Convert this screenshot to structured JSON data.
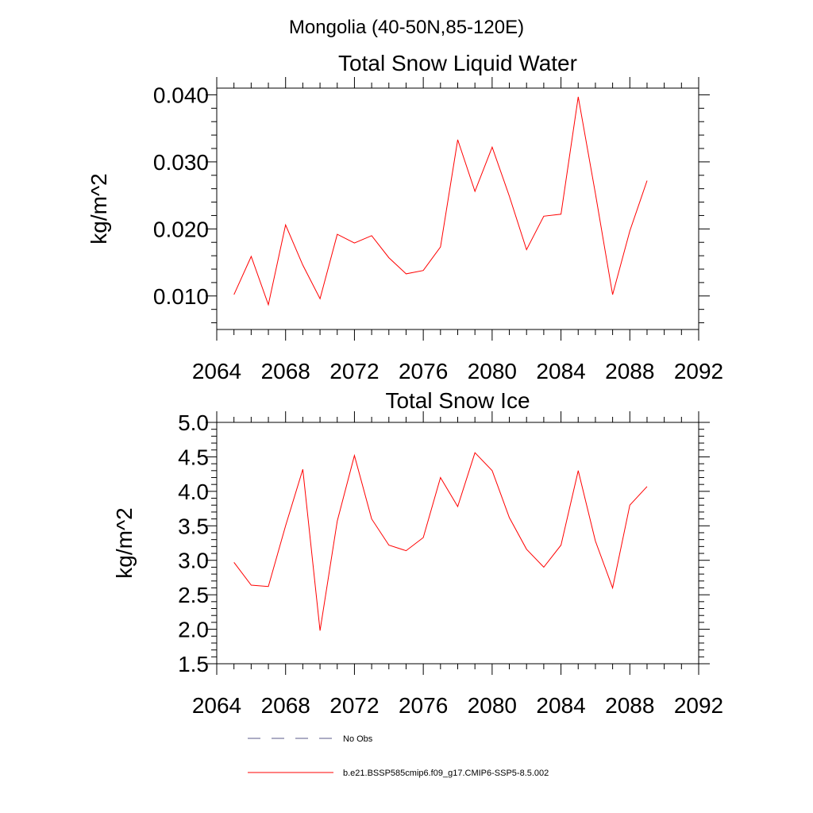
{
  "figure": {
    "suptitle": "Mongolia (40-50N,85-120E)"
  },
  "chart_data": [
    {
      "type": "line",
      "title": "Total Snow Liquid Water",
      "xlabel": "",
      "ylabel": "kg/m^2",
      "xlim": [
        2064,
        2092
      ],
      "ylim": [
        0.005,
        0.041
      ],
      "x_ticks": [
        2064,
        2068,
        2072,
        2076,
        2080,
        2084,
        2088,
        2092
      ],
      "x_tick_labels": [
        "2064",
        "2068",
        "2072",
        "2076",
        "2080",
        "2084",
        "2088",
        "2092"
      ],
      "y_ticks": [
        0.01,
        0.02,
        0.03,
        0.04
      ],
      "y_tick_labels": [
        "0.010",
        "0.020",
        "0.030",
        "0.040"
      ],
      "grid": false,
      "series": [
        {
          "name": "b.e21.BSSP585cmip6.f09_g17.CMIP6-SSP5-8.5.002",
          "color": "#ff0000",
          "x": [
            2065,
            2066,
            2067,
            2068,
            2069,
            2070,
            2071,
            2072,
            2073,
            2074,
            2075,
            2076,
            2077,
            2078,
            2079,
            2080,
            2081,
            2082,
            2083,
            2084,
            2085,
            2086,
            2087,
            2088,
            2089
          ],
          "y": [
            0.0102,
            0.0159,
            0.0087,
            0.0206,
            0.0146,
            0.0096,
            0.0192,
            0.0179,
            0.019,
            0.0157,
            0.0133,
            0.0138,
            0.0173,
            0.0333,
            0.0256,
            0.0322,
            0.0249,
            0.0169,
            0.0219,
            0.0222,
            0.0397,
            0.0253,
            0.0102,
            0.0197,
            0.0272
          ]
        }
      ]
    },
    {
      "type": "line",
      "title": "Total Snow Ice",
      "xlabel": "",
      "ylabel": "kg/m^2",
      "xlim": [
        2064,
        2092
      ],
      "ylim": [
        1.5,
        5.0
      ],
      "x_ticks": [
        2064,
        2068,
        2072,
        2076,
        2080,
        2084,
        2088,
        2092
      ],
      "x_tick_labels": [
        "2064",
        "2068",
        "2072",
        "2076",
        "2080",
        "2084",
        "2088",
        "2092"
      ],
      "y_ticks": [
        1.5,
        2.0,
        2.5,
        3.0,
        3.5,
        4.0,
        4.5,
        5.0
      ],
      "y_tick_labels": [
        "1.5",
        "2.0",
        "2.5",
        "3.0",
        "3.5",
        "4.0",
        "4.5",
        "5.0"
      ],
      "grid": false,
      "series": [
        {
          "name": "b.e21.BSSP585cmip6.f09_g17.CMIP6-SSP5-8.5.002",
          "color": "#ff0000",
          "x": [
            2065,
            2066,
            2067,
            2068,
            2069,
            2070,
            2071,
            2072,
            2073,
            2074,
            2075,
            2076,
            2077,
            2078,
            2079,
            2080,
            2081,
            2082,
            2083,
            2084,
            2085,
            2086,
            2087,
            2088,
            2089
          ],
          "y": [
            2.97,
            2.64,
            2.62,
            3.5,
            4.32,
            1.98,
            3.57,
            4.52,
            3.6,
            3.22,
            3.14,
            3.33,
            4.2,
            3.78,
            4.56,
            4.3,
            3.62,
            3.16,
            2.9,
            3.22,
            4.3,
            3.28,
            2.6,
            3.8,
            4.07
          ]
        }
      ]
    }
  ],
  "legend": {
    "placement": "bottom",
    "entries": [
      {
        "label": "No Obs",
        "style": "dashed",
        "color": "#5a5a8a"
      },
      {
        "label": "b.e21.BSSP585cmip6.f09_g17.CMIP6-SSP5-8.5.002",
        "style": "solid",
        "color": "#ff0000"
      }
    ]
  }
}
